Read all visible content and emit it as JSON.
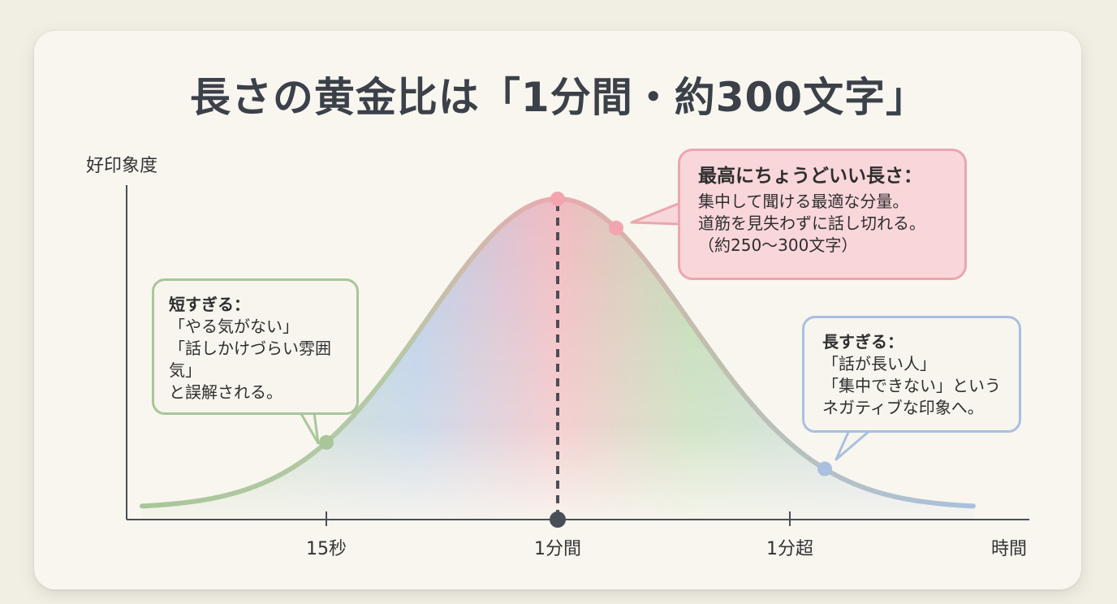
{
  "title": "長さの黄金比は「1分間・約300文字」",
  "axes": {
    "y_label": "好印象度",
    "x_label": "時間",
    "ticks": [
      "15秒",
      "1分間",
      "1分超"
    ]
  },
  "callouts": {
    "short": {
      "heading": "短すぎる：",
      "lines": [
        "「やる気がない」",
        "「話しかけづらい雰囲",
        "気」",
        "と誤解される。"
      ]
    },
    "best": {
      "heading": "最高にちょうどいい長さ：",
      "lines": [
        "集中して聞ける最適な分量。",
        "道筋を見失わずに話し切れる。",
        "（約250〜300文字）"
      ]
    },
    "long": {
      "heading": "長すぎる：",
      "lines": [
        "「話が長い人」",
        "「集中できない」という",
        "ネガティブな印象へ。"
      ]
    }
  },
  "colors": {
    "short": "#a9c69a",
    "best": "#eba6ad",
    "long": "#a9c0df",
    "axis": "#4a4f57",
    "marker": "#4a4f57"
  }
}
